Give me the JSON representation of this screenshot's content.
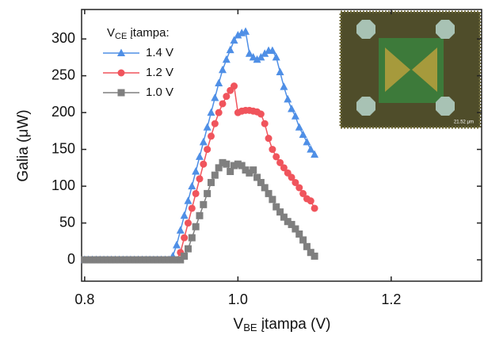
{
  "chart_data": {
    "type": "line",
    "y_label": "Galia (μW)",
    "x_label": {
      "main": "V",
      "sub": "BE",
      "rest": " įtampa (V)"
    },
    "legend_title": {
      "main": "V",
      "sub": "CE",
      "rest": " įtampa:"
    },
    "legend_position": "upper left",
    "inset": {
      "scale_label": "21.52 μm"
    },
    "xlim": [
      0.796,
      1.318
    ],
    "xticks": [
      {
        "value": 0.8,
        "label": "0.8"
      },
      {
        "value": 1.0,
        "label": "1.0"
      },
      {
        "value": 1.2,
        "label": "1.2"
      }
    ],
    "ylim": [
      -29,
      340
    ],
    "yticks": [
      0,
      50,
      100,
      150,
      200,
      250,
      300
    ],
    "x": [
      0.8,
      0.805,
      0.81,
      0.815,
      0.82,
      0.825,
      0.83,
      0.835,
      0.84,
      0.845,
      0.85,
      0.855,
      0.86,
      0.865,
      0.87,
      0.875,
      0.88,
      0.885,
      0.89,
      0.895,
      0.9,
      0.905,
      0.91,
      0.915,
      0.92,
      0.925,
      0.93,
      0.935,
      0.94,
      0.945,
      0.95,
      0.955,
      0.96,
      0.965,
      0.97,
      0.975,
      0.98,
      0.985,
      0.99,
      0.995,
      1.0,
      1.005,
      1.01,
      1.015,
      1.02,
      1.025,
      1.03,
      1.035,
      1.04,
      1.045,
      1.05,
      1.055,
      1.06,
      1.065,
      1.07,
      1.075,
      1.08,
      1.085,
      1.09,
      1.095,
      1.1
    ],
    "series": [
      {
        "name": "1.4 V",
        "color": "#4f8fe6",
        "marker": "triangle",
        "values": [
          0,
          0,
          0,
          0,
          0,
          0,
          0,
          0,
          0,
          0,
          0,
          0,
          0,
          0,
          0,
          0,
          0,
          0,
          0,
          0,
          0,
          0,
          0,
          5,
          20,
          40,
          60,
          80,
          100,
          120,
          140,
          160,
          180,
          200,
          220,
          240,
          258,
          272,
          285,
          298,
          305,
          308,
          310,
          280,
          275,
          272,
          275,
          280,
          284,
          284,
          275,
          255,
          235,
          218,
          205,
          195,
          180,
          170,
          160,
          150,
          143
        ]
      },
      {
        "name": "1.2 V",
        "color": "#f0545c",
        "marker": "circle",
        "values": [
          0,
          0,
          0,
          0,
          0,
          0,
          0,
          0,
          0,
          0,
          0,
          0,
          0,
          0,
          0,
          0,
          0,
          0,
          0,
          0,
          0,
          0,
          0,
          0,
          0,
          10,
          30,
          50,
          70,
          90,
          110,
          130,
          150,
          168,
          185,
          200,
          212,
          222,
          230,
          236,
          200,
          202,
          203,
          203,
          202,
          201,
          198,
          185,
          165,
          150,
          140,
          132,
          125,
          118,
          112,
          105,
          98,
          90,
          83,
          80,
          70
        ]
      },
      {
        "name": "1.0 V",
        "color": "#7f7f7f",
        "marker": "square",
        "values": [
          0,
          0,
          0,
          0,
          0,
          0,
          0,
          0,
          0,
          0,
          0,
          0,
          0,
          0,
          0,
          0,
          0,
          0,
          0,
          0,
          0,
          0,
          0,
          0,
          0,
          0,
          5,
          15,
          30,
          45,
          60,
          75,
          90,
          105,
          115,
          125,
          132,
          130,
          120,
          128,
          130,
          128,
          122,
          118,
          122,
          112,
          105,
          98,
          90,
          82,
          72,
          65,
          58,
          52,
          48,
          42,
          35,
          27,
          18,
          10,
          5
        ]
      }
    ]
  }
}
